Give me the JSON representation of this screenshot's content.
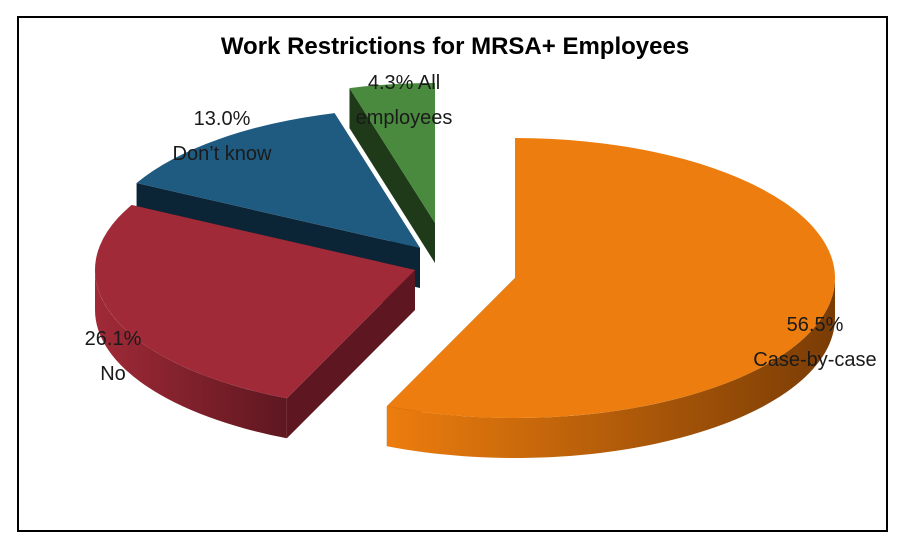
{
  "chart_data": {
    "type": "pie",
    "title": "Work Restrictions for MRSA+ Employees",
    "slices": [
      {
        "label": "Case-by-case",
        "value": 56.5,
        "value_text": "56.5%",
        "color": "#ED7D0E",
        "side_color": "#7A3C05",
        "exploded": false,
        "label_position": "right"
      },
      {
        "label": "No",
        "value": 26.1,
        "value_text": "26.1%",
        "color": "#A02A37",
        "side_color": "#5E1720",
        "exploded": true,
        "label_position": "left"
      },
      {
        "label": "Don’t know",
        "value": 13.0,
        "value_text": "13.0%",
        "color": "#1F5B80",
        "side_color": "#0C2536",
        "exploded": true,
        "label_position": "top-left"
      },
      {
        "label": "All employees",
        "label_lines": [
          "All",
          "employees"
        ],
        "value": 4.3,
        "value_text": "4.3%",
        "color": "#4A8A3E",
        "side_color": "#1E3A19",
        "exploded": true,
        "label_position": "top"
      }
    ],
    "legend": "none",
    "style": "3D exploded pie"
  }
}
